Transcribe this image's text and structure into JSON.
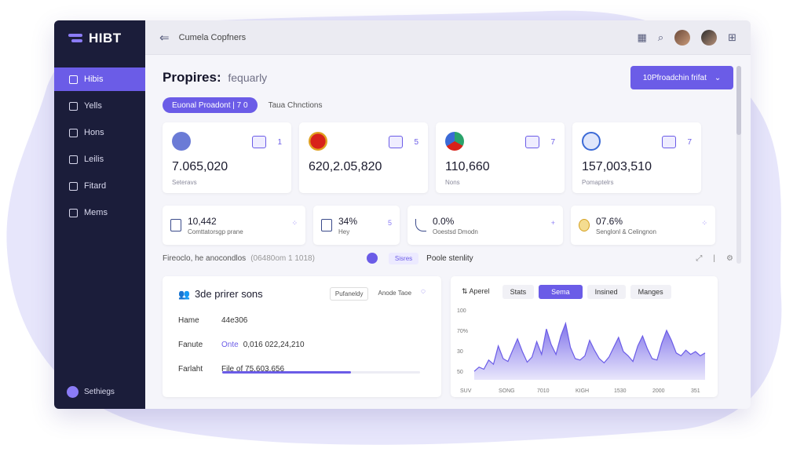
{
  "brand": {
    "name": "HIBT"
  },
  "sidebar": {
    "items": [
      {
        "label": "Hibis",
        "icon": "table-icon",
        "active": true
      },
      {
        "label": "Yells",
        "icon": "chart-icon"
      },
      {
        "label": "Hons",
        "icon": "doc-icon"
      },
      {
        "label": "Leilis",
        "icon": "gauge-icon"
      },
      {
        "label": "Fitard",
        "icon": "card-icon"
      },
      {
        "label": "Mems",
        "icon": "box-icon"
      }
    ],
    "footer": "Sethiegs"
  },
  "topbar": {
    "title": "Cumela Copfners"
  },
  "page": {
    "title": "Propires:",
    "subtitle": "fequarly",
    "primary_button": "10Pfroadchin frifat"
  },
  "filters": {
    "active_pill": "Euonal Proadont | 7 0",
    "link": "Taua Chnctions"
  },
  "stats": [
    {
      "value": "7.065,020",
      "label": "Seteravs",
      "tag": "1",
      "color": "#6b7bd6"
    },
    {
      "value": "620,2.05,820",
      "label": "",
      "tag": "5",
      "color": "#e0a020"
    },
    {
      "value": "110,660",
      "label": "Nons",
      "tag": "7",
      "color": "#2aa36b"
    },
    {
      "value": "157,003,510",
      "label": "Pomaptelrs",
      "tag": "7",
      "color": "#3b6ad6"
    }
  ],
  "kpis": [
    {
      "value": "10,442",
      "label": "Comttatorsgp prane",
      "right": ""
    },
    {
      "value": "34%",
      "label": "Hey",
      "right": "5"
    },
    {
      "value": "0.0%",
      "label": "Ooestsd Dmodn",
      "right": "+"
    },
    {
      "value": "07.6%",
      "label": "Senglonl & Celingnon",
      "right": ""
    }
  ],
  "subbar": {
    "left": "Fireoclo, he anocondlos",
    "muted": "(06480om 1 1018)",
    "tag": "Sisres",
    "text": "Poole stenlity"
  },
  "details": {
    "title": "3de prirer sons",
    "tools": [
      "Pufaneldy",
      "Anode Taoe"
    ],
    "rows": [
      {
        "key": "Hame",
        "highlight": "",
        "value": "44e306"
      },
      {
        "key": "Fanute",
        "highlight": "Onte",
        "value": "0,016 022,24,210"
      },
      {
        "key": "Farlaht",
        "highlight": "",
        "value": "File of 75,603,656"
      }
    ],
    "progress": 0.65
  },
  "chart_data": {
    "type": "area",
    "tabs": [
      "Aperel",
      "Stats",
      "Sema",
      "Insined",
      "Manges"
    ],
    "active_tab": "Sema",
    "x_ticks": [
      "SUV",
      "SONG",
      "7010",
      "KIGH",
      "1530",
      "2000",
      "351"
    ],
    "y_ticks": [
      "100",
      "70%",
      "30",
      "50"
    ],
    "values": [
      12,
      18,
      15,
      28,
      22,
      48,
      30,
      26,
      42,
      58,
      40,
      25,
      32,
      54,
      36,
      72,
      50,
      36,
      62,
      80,
      46,
      30,
      28,
      34,
      56,
      42,
      30,
      24,
      32,
      46,
      60,
      40,
      34,
      26,
      48,
      62,
      44,
      30,
      28,
      52,
      70,
      56,
      38,
      34,
      42,
      36,
      40,
      34,
      38
    ],
    "ylim": [
      0,
      100
    ],
    "color": "#6b5ce7"
  }
}
